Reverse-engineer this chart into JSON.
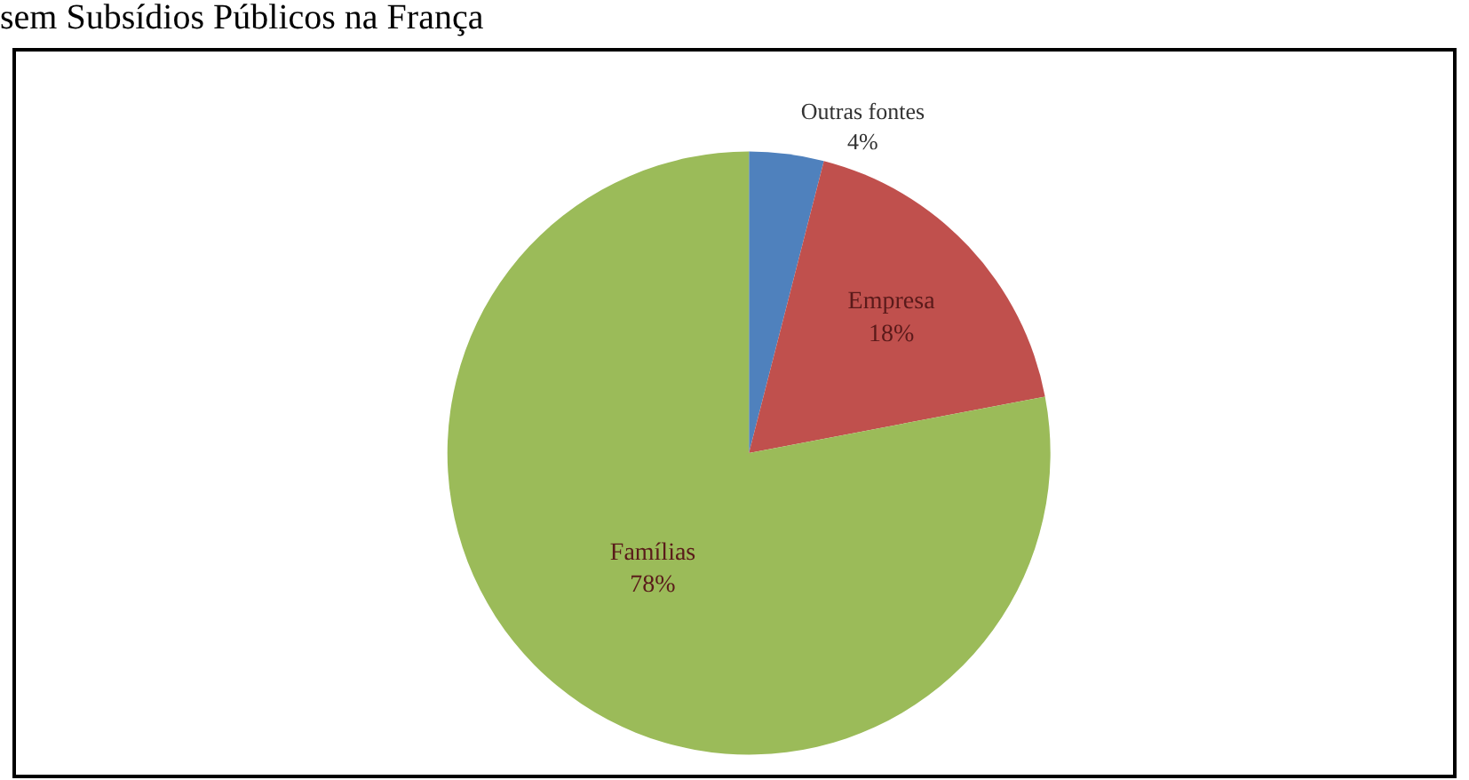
{
  "chart_data": {
    "type": "pie",
    "title": "sem Subsídios Públicos na França",
    "categories": [
      "Outras fontes",
      "Empresa",
      "Famílias"
    ],
    "values": [
      4,
      18,
      78
    ],
    "value_labels": [
      "4%",
      "18%",
      "78%"
    ],
    "colors": [
      "#4f81bd",
      "#c0504d",
      "#9bbb59"
    ],
    "legend": false
  }
}
